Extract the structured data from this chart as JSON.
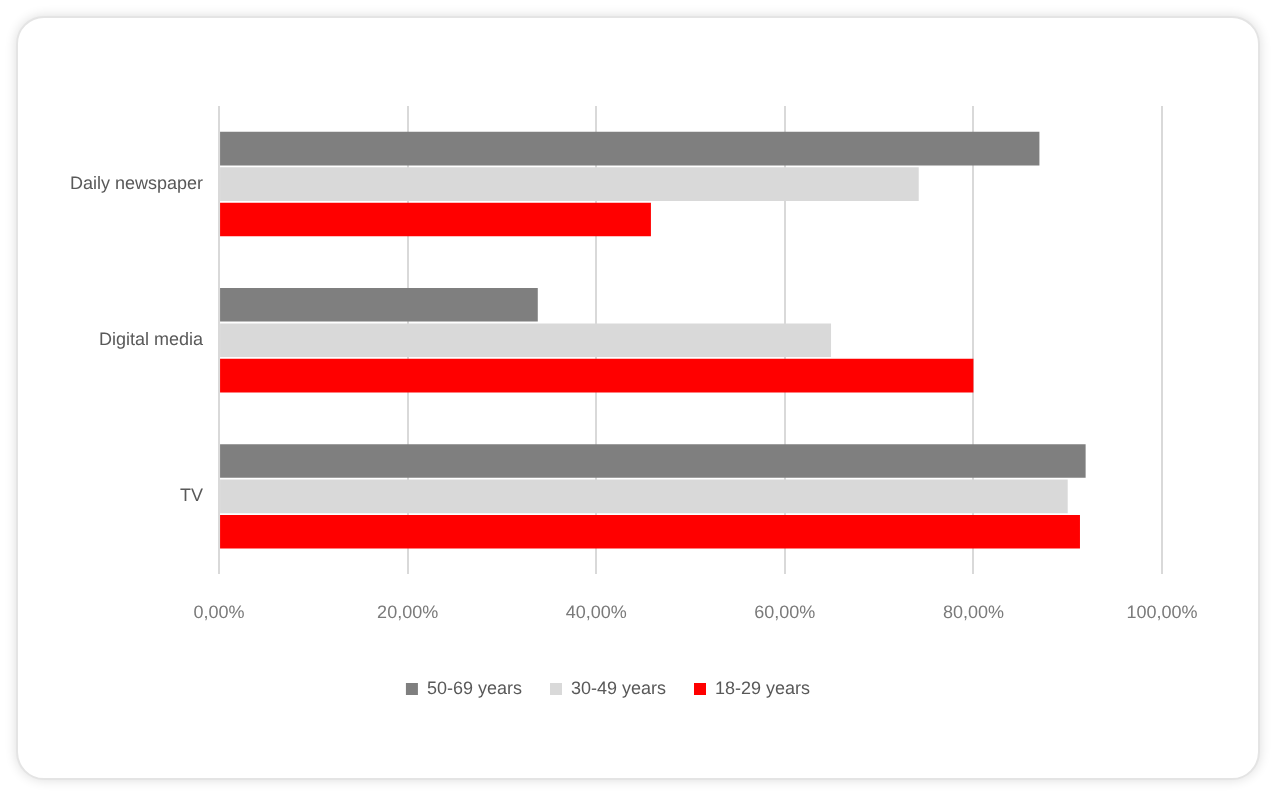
{
  "chart_data": {
    "type": "bar",
    "orientation": "horizontal",
    "categories": [
      "Daily newspaper",
      "Digital media",
      "TV"
    ],
    "series": [
      {
        "name": "50-69 years",
        "color": "#7f7f7f",
        "values": [
          87,
          33.8,
          91.9
        ]
      },
      {
        "name": "30-49 years",
        "color": "#d9d9d9",
        "values": [
          74.2,
          64.9,
          90
        ]
      },
      {
        "name": "18-29 years",
        "color": "#ff0000",
        "values": [
          45.8,
          80,
          91.3
        ]
      }
    ],
    "xlim": [
      0,
      100
    ],
    "xticks": [
      {
        "value": 0,
        "label": "0,00%"
      },
      {
        "value": 20,
        "label": "20,00%"
      },
      {
        "value": 40,
        "label": "40,00%"
      },
      {
        "value": 60,
        "label": "60,00%"
      },
      {
        "value": 80,
        "label": "80,00%"
      },
      {
        "value": 100,
        "label": "100,00%"
      }
    ],
    "grid": "x",
    "legend": "bottom"
  }
}
